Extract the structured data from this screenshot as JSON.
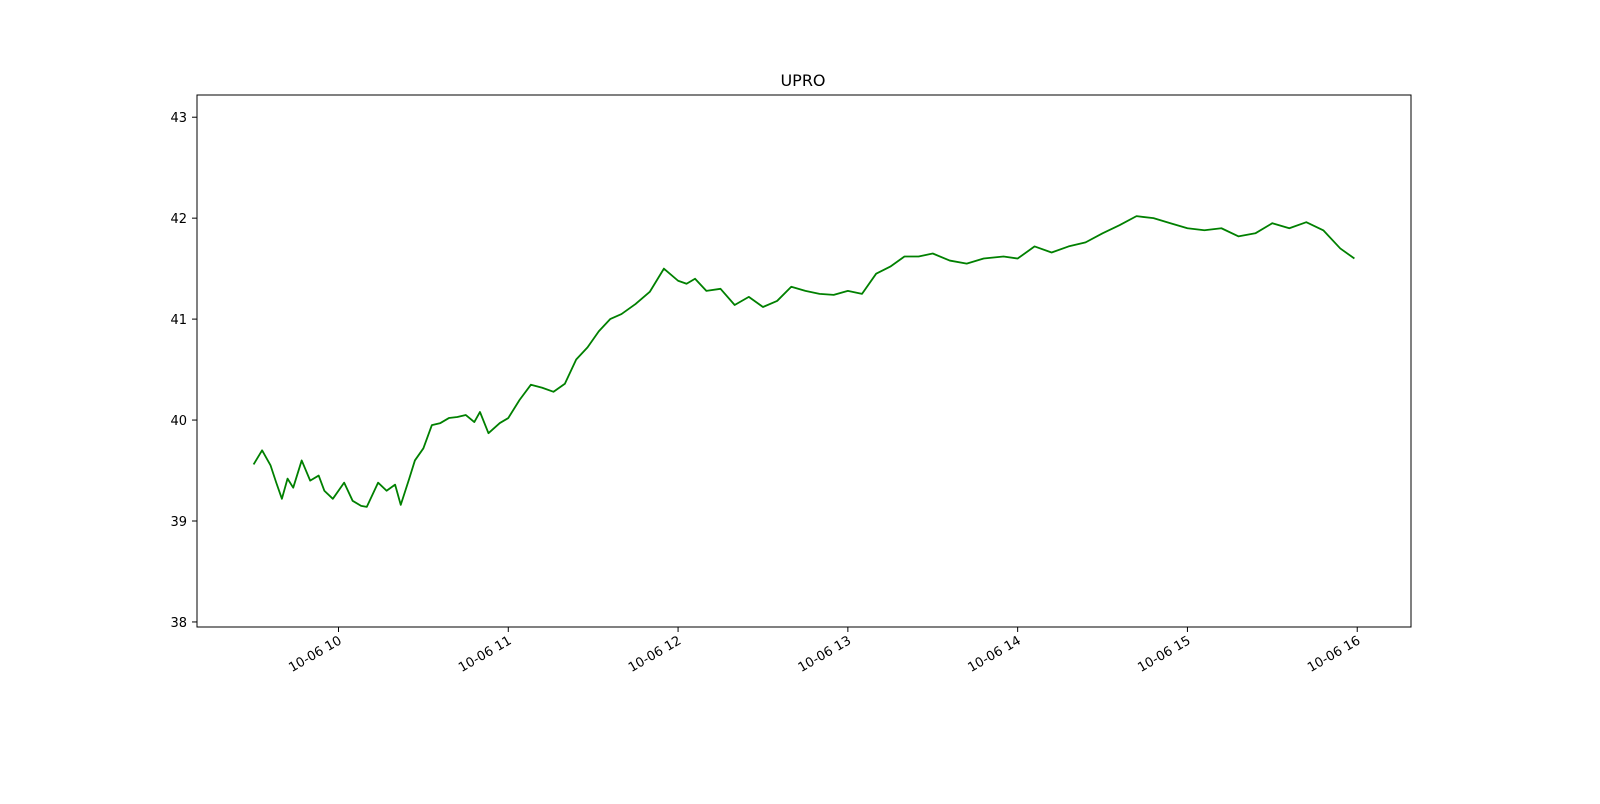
{
  "chart_data": {
    "type": "line",
    "title": "UPRO",
    "xlabel": "",
    "ylabel": "",
    "x_ticks": [
      "10-06 10",
      "10-06 11",
      "10-06 12",
      "10-06 13",
      "10-06 14",
      "10-06 15",
      "10-06 16"
    ],
    "y_ticks": [
      "38",
      "39",
      "40",
      "41",
      "42",
      "43"
    ],
    "xlim": [
      "10-06 09:10",
      "10-06 16:19"
    ],
    "ylim": [
      37.95,
      43.22
    ],
    "grid": false,
    "legend": "none",
    "line_color": "#008000",
    "series": [
      {
        "x": [
          "10-06 09:30",
          "10-06 09:33",
          "10-06 09:36",
          "10-06 09:38",
          "10-06 09:40",
          "10-06 09:42",
          "10-06 09:44",
          "10-06 09:47",
          "10-06 09:50",
          "10-06 09:53",
          "10-06 09:55",
          "10-06 09:58",
          "10-06 10:02",
          "10-06 10:05",
          "10-06 10:08",
          "10-06 10:10",
          "10-06 10:14",
          "10-06 10:17",
          "10-06 10:20",
          "10-06 10:22",
          "10-06 10:25",
          "10-06 10:27",
          "10-06 10:30",
          "10-06 10:33",
          "10-06 10:36",
          "10-06 10:39",
          "10-06 10:42",
          "10-06 10:45",
          "10-06 10:48",
          "10-06 10:50",
          "10-06 10:53",
          "10-06 10:57",
          "10-06 11:00",
          "10-06 11:04",
          "10-06 11:08",
          "10-06 11:12",
          "10-06 11:16",
          "10-06 11:20",
          "10-06 11:24",
          "10-06 11:28",
          "10-06 11:32",
          "10-06 11:36",
          "10-06 11:40",
          "10-06 11:45",
          "10-06 11:50",
          "10-06 11:55",
          "10-06 12:00",
          "10-06 12:03",
          "10-06 12:06",
          "10-06 12:10",
          "10-06 12:15",
          "10-06 12:20",
          "10-06 12:25",
          "10-06 12:30",
          "10-06 12:35",
          "10-06 12:40",
          "10-06 12:45",
          "10-06 12:50",
          "10-06 12:55",
          "10-06 13:00",
          "10-06 13:05",
          "10-06 13:10",
          "10-06 13:15",
          "10-06 13:20",
          "10-06 13:25",
          "10-06 13:30",
          "10-06 13:36",
          "10-06 13:42",
          "10-06 13:48",
          "10-06 13:55",
          "10-06 14:00",
          "10-06 14:06",
          "10-06 14:12",
          "10-06 14:18",
          "10-06 14:24",
          "10-06 14:30",
          "10-06 14:36",
          "10-06 14:42",
          "10-06 14:48",
          "10-06 14:54",
          "10-06 15:00",
          "10-06 15:06",
          "10-06 15:12",
          "10-06 15:18",
          "10-06 15:24",
          "10-06 15:30",
          "10-06 15:36",
          "10-06 15:42",
          "10-06 15:48",
          "10-06 15:54",
          "10-06 15:59"
        ],
        "values": [
          39.56,
          39.7,
          39.55,
          39.38,
          39.22,
          39.42,
          39.33,
          39.6,
          39.4,
          39.45,
          39.3,
          39.22,
          39.38,
          39.2,
          39.15,
          39.14,
          39.38,
          39.3,
          39.36,
          39.16,
          39.42,
          39.6,
          39.72,
          39.95,
          39.97,
          40.02,
          40.03,
          40.05,
          39.98,
          40.08,
          39.87,
          39.97,
          40.02,
          40.2,
          40.35,
          40.32,
          40.28,
          40.36,
          40.6,
          40.72,
          40.88,
          41.0,
          41.05,
          41.15,
          41.27,
          41.5,
          41.38,
          41.35,
          41.4,
          41.28,
          41.3,
          41.14,
          41.22,
          41.12,
          41.18,
          41.32,
          41.28,
          41.25,
          41.24,
          41.28,
          41.25,
          41.45,
          41.52,
          41.62,
          41.62,
          41.65,
          41.58,
          41.55,
          41.6,
          41.62,
          41.6,
          41.72,
          41.66,
          41.72,
          41.76,
          41.85,
          41.93,
          42.02,
          42.0,
          41.95,
          41.9,
          41.88,
          41.9,
          41.82,
          41.85,
          41.95,
          41.9,
          41.96,
          41.88,
          41.7,
          41.6
        ]
      }
    ]
  }
}
